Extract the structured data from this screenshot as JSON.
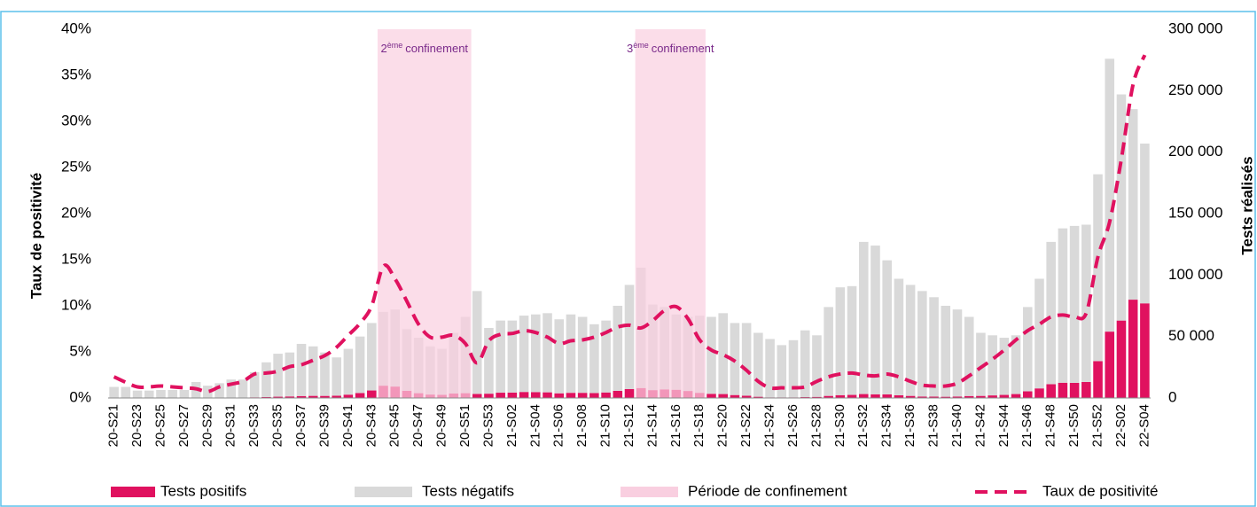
{
  "chart_data": {
    "type": "bar-line",
    "y_title": "Taux de positivité",
    "y2_title": "Tests réalisés",
    "categories": [
      "20-S21",
      null,
      "20-S23",
      null,
      "20-S25",
      null,
      "20-S27",
      null,
      "20-S29",
      null,
      "20-S31",
      null,
      "20-S33",
      null,
      "20-S35",
      null,
      "20-S37",
      null,
      "20-S39",
      null,
      "20-S41",
      null,
      "20-S43",
      null,
      "20-S45",
      null,
      "20-S47",
      null,
      "20-S49",
      null,
      "20-S51",
      null,
      "20-S53",
      null,
      "21-S02",
      null,
      "21-S04",
      null,
      "21-S06",
      null,
      "21-S08",
      null,
      "21-S10",
      null,
      "21-S12",
      null,
      "21-S14",
      null,
      "21-S16",
      null,
      "21-S18",
      null,
      "21-S20",
      null,
      "21-S22",
      null,
      "21-S24",
      null,
      "21-S26",
      null,
      "21-S28",
      null,
      "21-S30",
      null,
      "21-S32",
      null,
      "21-S34",
      null,
      "21-S36",
      null,
      "21-S38",
      null,
      "21-S40",
      null,
      "21-S42",
      null,
      "21-S44",
      null,
      "21-S46",
      null,
      "21-S48",
      null,
      "21-S50",
      null,
      "21-S52",
      null,
      "22-S02",
      null,
      "22-S04"
    ],
    "series": [
      {
        "name": "Tests positifs",
        "color": "#e0115f",
        "axis": "y2",
        "kind": "bar",
        "values": [
          200,
          150,
          70,
          70,
          80,
          80,
          70,
          130,
          70,
          140,
          230,
          270,
          550,
          780,
          1040,
          1260,
          1580,
          1720,
          1700,
          1820,
          2720,
          4050,
          6100,
          10000,
          9300,
          5900,
          3900,
          2800,
          2600,
          3600,
          3900,
          3300,
          3500,
          4300,
          4400,
          4900,
          4800,
          4600,
          3800,
          4200,
          4200,
          4000,
          4500,
          5800,
          7300,
          8100,
          6400,
          7000,
          6700,
          5700,
          4200,
          3400,
          3200,
          2400,
          1800,
          1000,
          500,
          500,
          500,
          700,
          900,
          1700,
          2300,
          2500,
          3200,
          3000,
          2900,
          2200,
          1700,
          1200,
          1100,
          1000,
          1200,
          1600,
          1700,
          2100,
          2500,
          3200,
          5400,
          7800,
          11200,
          12400,
          12300,
          13000,
          30000,
          54000,
          63000,
          80000,
          77000
        ]
      },
      {
        "name": "Tests négatifs",
        "color": "#d9d9d9",
        "axis": "y2",
        "kind": "bar",
        "values": [
          8800,
          8850,
          5930,
          5930,
          6420,
          6420,
          6430,
          12870,
          9930,
          11860,
          14770,
          14730,
          20450,
          28220,
          34960,
          35740,
          42420,
          40280,
          35300,
          31180,
          37280,
          45950,
          54900,
          60000,
          62700,
          50100,
          45100,
          39200,
          37400,
          49400,
          62100,
          83700,
          53500,
          58700,
          58600,
          62100,
          63200,
          64400,
          60200,
          63800,
          61800,
          56000,
          58500,
          69200,
          84700,
          97900,
          69600,
          67000,
          61300,
          60300,
          62800,
          62600,
          65800,
          58600,
          59200,
          52000,
          47500,
          42500,
          46500,
          54300,
          50100,
          72300,
          87700,
          88500,
          123800,
          121000,
          109100,
          94800,
          90300,
          85800,
          80900,
          74000,
          70800,
          64400,
          51300,
          48900,
          46500,
          47800,
          68600,
          89200,
          115800,
          125600,
          127700,
          128000,
          152000,
          222000,
          184000,
          155000,
          130000
        ]
      },
      {
        "name": "Taux de positivité",
        "color": "#e0115f",
        "axis": "y",
        "kind": "line",
        "values": [
          2.3,
          1.7,
          1.2,
          1.2,
          1.3,
          1.2,
          1.1,
          1.0,
          0.7,
          1.2,
          1.5,
          1.8,
          2.6,
          2.7,
          2.9,
          3.4,
          3.6,
          4.1,
          4.6,
          5.5,
          6.8,
          8.1,
          10.0,
          14.3,
          12.9,
          10.5,
          8.0,
          6.6,
          6.6,
          6.8,
          5.9,
          3.8,
          6.2,
          6.9,
          7.0,
          7.3,
          7.1,
          6.6,
          5.9,
          6.2,
          6.3,
          6.6,
          7.1,
          7.7,
          7.9,
          7.6,
          8.4,
          9.5,
          9.9,
          8.6,
          6.3,
          5.2,
          4.7,
          4.0,
          3.0,
          1.8,
          1.1,
          1.1,
          1.1,
          1.2,
          1.8,
          2.3,
          2.6,
          2.7,
          2.5,
          2.4,
          2.6,
          2.3,
          1.8,
          1.4,
          1.3,
          1.3,
          1.6,
          2.4,
          3.3,
          4.2,
          5.2,
          6.3,
          7.3,
          8.0,
          8.8,
          9.0,
          8.8,
          9.2,
          15.3,
          19.1,
          25.9,
          34.0,
          37.2
        ]
      }
    ],
    "periods_name": "Période de confinement",
    "periods_color": "#f9cfe0",
    "periods": [
      {
        "start": 23,
        "end": 30,
        "label_num": "2",
        "label_sup": "ème",
        "label_text": "confinement"
      },
      {
        "start": 45,
        "end": 50,
        "label_num": "3",
        "label_sup": "ème",
        "label_text": "confinement"
      }
    ],
    "ylim": [
      0,
      40
    ],
    "yticks": [
      {
        "value": 0,
        "label": "0%"
      },
      {
        "value": 5,
        "label": "5%"
      },
      {
        "value": 10,
        "label": "10%"
      },
      {
        "value": 15,
        "label": "15%"
      },
      {
        "value": 20,
        "label": "20%"
      },
      {
        "value": 25,
        "label": "25%"
      },
      {
        "value": 30,
        "label": "30%"
      },
      {
        "value": 35,
        "label": "35%"
      },
      {
        "value": 40,
        "label": "40%"
      }
    ],
    "y2lim": [
      0,
      300000
    ],
    "y2ticks": [
      0,
      {
        "value": 50000,
        "label": "50 000"
      },
      {
        "value": 100000,
        "label": "100 000"
      },
      {
        "value": 150000,
        "label": "150 000"
      },
      {
        "value": 200000,
        "label": "200 000"
      },
      {
        "value": 250000,
        "label": "250 000"
      },
      {
        "value": 300000,
        "label": "300 000"
      }
    ],
    "grid": false,
    "legend": "bottom"
  }
}
